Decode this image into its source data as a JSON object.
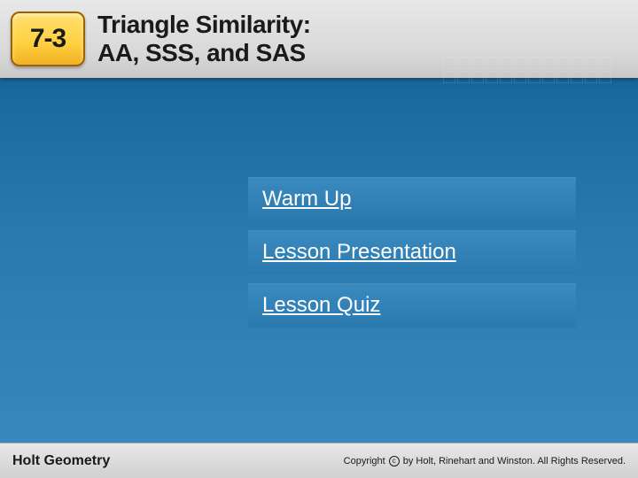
{
  "header": {
    "section_number": "7-3",
    "title_line1": "Triangle Similarity:",
    "title_line2": "AA, SSS, and SAS",
    "badge_bg_top": "#ffe070",
    "badge_bg_bottom": "#f0b020",
    "badge_border": "#a06000",
    "title_color": "#1a1a1a",
    "title_fontsize": 28,
    "badge_fontsize": 30,
    "header_bg_top": "#e8e8e8",
    "header_bg_bottom": "#c8c8c8"
  },
  "menu": {
    "items": [
      {
        "label": "Warm Up"
      },
      {
        "label": "Lesson Presentation"
      },
      {
        "label": "Lesson Quiz"
      }
    ],
    "item_bg_top": "#3a8ac0",
    "item_bg_bottom": "#2a7ab0",
    "text_color": "#ffffff",
    "fontsize": 24
  },
  "body": {
    "bg_gradient_top": "#0a4a7a",
    "bg_gradient_bottom": "#3a8ac0"
  },
  "footer": {
    "left_text": "Holt Geometry",
    "right_prefix": "Copyright",
    "right_text": "by Holt, Rinehart and Winston. All Rights Reserved.",
    "bg_top": "#e8e8e8",
    "bg_bottom": "#d0d0d0",
    "left_fontsize": 16,
    "right_fontsize": 11
  }
}
